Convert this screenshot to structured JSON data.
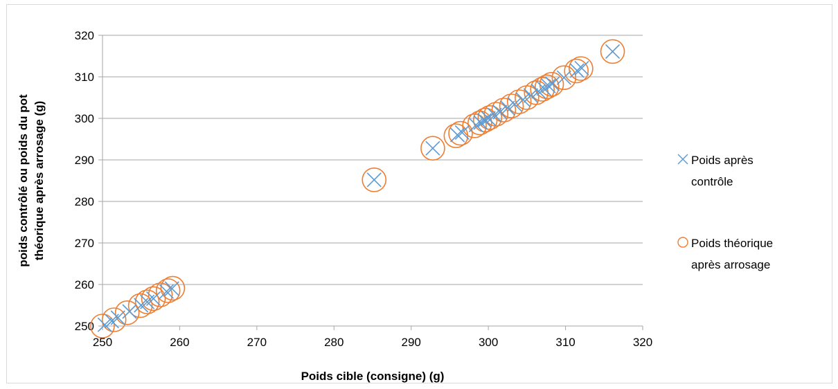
{
  "chart_data": {
    "type": "scatter",
    "title": "",
    "xlabel": "Poids cible (consigne) (g)",
    "ylabel_lines": [
      "poids contrôlé ou poids du pot",
      "théorique après arrosage (g)"
    ],
    "xlim": [
      250,
      320
    ],
    "ylim": [
      250,
      320
    ],
    "x_ticks": [
      250,
      260,
      270,
      280,
      290,
      300,
      310,
      320
    ],
    "y_ticks": [
      250,
      260,
      270,
      280,
      290,
      300,
      310,
      320
    ],
    "grid": "horizontal major",
    "legend_position": "right",
    "series": [
      {
        "name_lines": [
          "Poids après",
          "contrôle"
        ],
        "marker": "x",
        "color": "#5b9bd5",
        "points": [
          [
            250.3,
            250.3
          ],
          [
            251.2,
            251.2
          ],
          [
            252.0,
            252.0
          ],
          [
            253.5,
            253.5
          ],
          [
            255.0,
            255.0
          ],
          [
            255.8,
            255.8
          ],
          [
            256.6,
            256.6
          ],
          [
            258.3,
            258.3
          ],
          [
            259.0,
            259.0
          ],
          [
            285.2,
            285.2
          ],
          [
            292.8,
            292.8
          ],
          [
            296.0,
            296.0
          ],
          [
            296.6,
            296.6
          ],
          [
            298.4,
            298.4
          ],
          [
            299.0,
            299.0
          ],
          [
            299.5,
            299.5
          ],
          [
            300.0,
            300.0
          ],
          [
            300.8,
            300.8
          ],
          [
            301.5,
            301.5
          ],
          [
            302.5,
            302.5
          ],
          [
            303.4,
            303.4
          ],
          [
            304.5,
            304.5
          ],
          [
            305.5,
            305.5
          ],
          [
            306.5,
            306.5
          ],
          [
            307.2,
            307.2
          ],
          [
            307.8,
            307.8
          ],
          [
            308.3,
            308.3
          ],
          [
            309.8,
            309.8
          ],
          [
            311.5,
            311.5
          ],
          [
            312.1,
            312.1
          ],
          [
            316.1,
            316.1
          ]
        ]
      },
      {
        "name_lines": [
          "Poids théorique",
          "après arrosage"
        ],
        "marker": "o",
        "color": "#ed7d31",
        "points": [
          [
            250.0,
            250.0
          ],
          [
            251.5,
            251.5
          ],
          [
            253.2,
            253.2
          ],
          [
            254.9,
            254.9
          ],
          [
            255.8,
            255.8
          ],
          [
            256.6,
            256.6
          ],
          [
            257.5,
            257.5
          ],
          [
            258.5,
            258.5
          ],
          [
            259.1,
            259.1
          ],
          [
            285.2,
            285.2
          ],
          [
            292.8,
            292.8
          ],
          [
            295.8,
            295.8
          ],
          [
            296.4,
            296.4
          ],
          [
            298.2,
            298.2
          ],
          [
            298.9,
            298.9
          ],
          [
            299.6,
            299.6
          ],
          [
            300.2,
            300.2
          ],
          [
            301.0,
            301.0
          ],
          [
            302.0,
            302.0
          ],
          [
            303.0,
            303.0
          ],
          [
            304.0,
            304.0
          ],
          [
            305.0,
            305.0
          ],
          [
            306.2,
            306.2
          ],
          [
            307.0,
            307.0
          ],
          [
            307.6,
            307.6
          ],
          [
            308.2,
            308.2
          ],
          [
            309.8,
            309.8
          ],
          [
            311.4,
            311.4
          ],
          [
            312.0,
            312.0
          ],
          [
            316.1,
            316.1
          ]
        ]
      }
    ]
  }
}
